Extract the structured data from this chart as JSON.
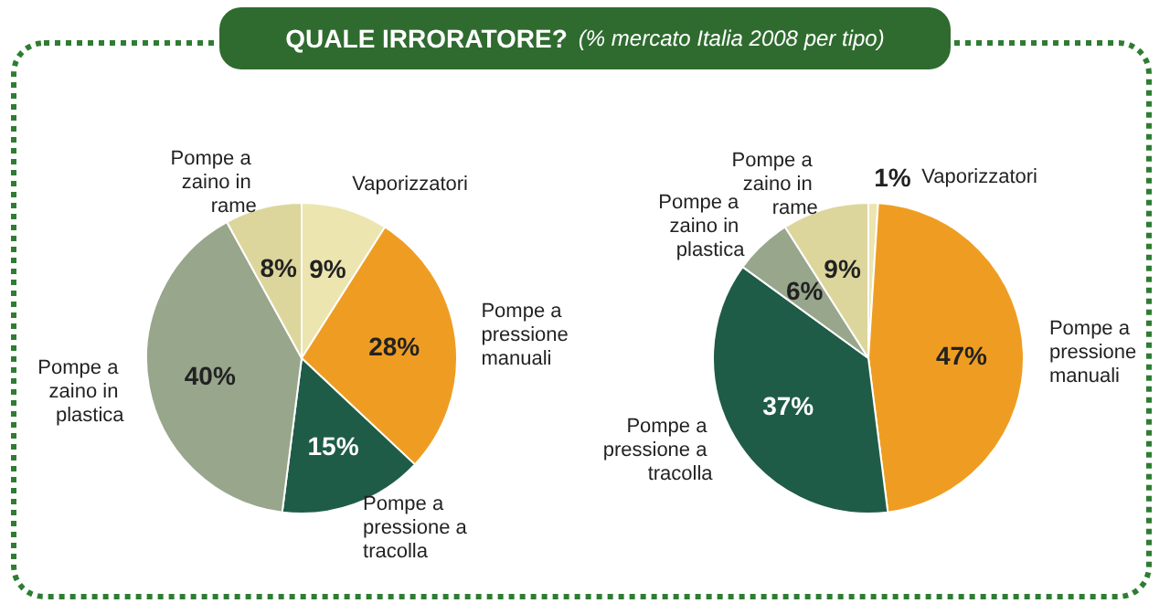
{
  "chart_data": [
    {
      "type": "pie",
      "title": "QUALE IRRORATORE?",
      "categories": [
        "Vaporizzatori",
        "Pompe a pressione manuali",
        "Pompe a pressione a tracolla",
        "Pompe a zaino in plastica",
        "Pompe a zaino in rame"
      ],
      "values": [
        9,
        28,
        15,
        40,
        8
      ],
      "colors": [
        "#ece5b0",
        "#ef9d22",
        "#1f5c48",
        "#98a68c",
        "#ddd69c"
      ],
      "value_labels": [
        "9%",
        "28%",
        "15%",
        "40%",
        "8%"
      ],
      "legend": false
    },
    {
      "type": "pie",
      "subtitle": "(% mercato Italia 2008 per tipo)",
      "categories": [
        "Vaporizzatori",
        "Pompe a pressione manuali",
        "Pompe a pressione a tracolla",
        "Pompe a zaino in plastica",
        "Pompe a zaino in rame"
      ],
      "values": [
        1,
        47,
        37,
        6,
        9
      ],
      "colors": [
        "#ece5b0",
        "#ef9d22",
        "#1f5c48",
        "#98a68c",
        "#ddd69c"
      ],
      "value_labels": [
        "1%",
        "47%",
        "37%",
        "6%",
        "9%"
      ],
      "legend": false
    }
  ]
}
